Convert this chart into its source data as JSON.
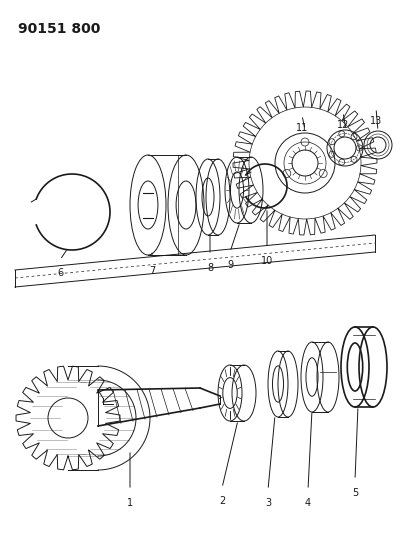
{
  "title": "90151 800",
  "bg_color": "#ffffff",
  "line_color": "#1a1a1a",
  "fig_width": 3.94,
  "fig_height": 5.33,
  "dpi": 100,
  "title_fontsize": 10,
  "title_fontweight": "bold"
}
